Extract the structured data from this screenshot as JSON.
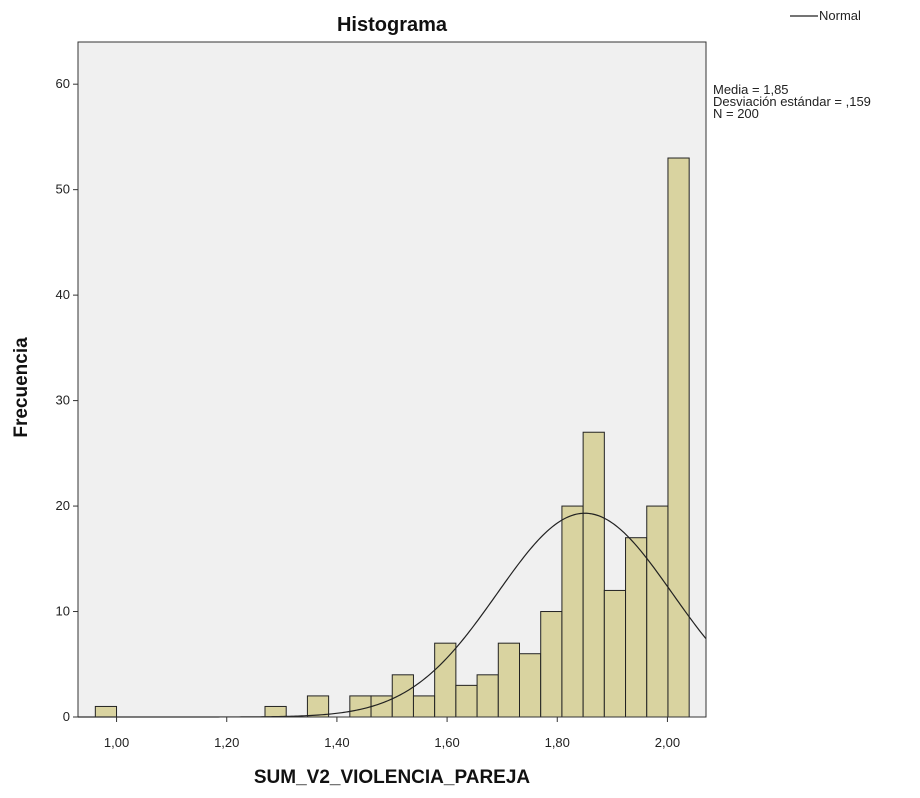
{
  "chart_data": {
    "type": "bar",
    "title": "Histograma",
    "xlabel": "SUM_V2_VIOLENCIA_PAREJA",
    "ylabel": "Frecuencia",
    "xlim": [
      0.93,
      2.07
    ],
    "ylim": [
      0,
      64
    ],
    "x_ticks": [
      1.0,
      1.2,
      1.4,
      1.6,
      1.8,
      2.0
    ],
    "x_tick_labels": [
      "1,00",
      "1,20",
      "1,40",
      "1,60",
      "1,80",
      "2,00"
    ],
    "y_ticks": [
      0,
      10,
      20,
      30,
      40,
      50,
      60
    ],
    "y_tick_labels": [
      "0",
      "10",
      "20",
      "30",
      "40",
      "50",
      "60"
    ],
    "bin_width": 0.0385,
    "bins": [
      {
        "x": 0.9807,
        "count": 1
      },
      {
        "x": 1.2887,
        "count": 1
      },
      {
        "x": 1.3657,
        "count": 2
      },
      {
        "x": 1.4427,
        "count": 2
      },
      {
        "x": 1.4812,
        "count": 2
      },
      {
        "x": 1.5197,
        "count": 4
      },
      {
        "x": 1.5582,
        "count": 2
      },
      {
        "x": 1.5967,
        "count": 7
      },
      {
        "x": 1.6352,
        "count": 3
      },
      {
        "x": 1.6737,
        "count": 4
      },
      {
        "x": 1.7122,
        "count": 7
      },
      {
        "x": 1.7507,
        "count": 6
      },
      {
        "x": 1.7892,
        "count": 10
      },
      {
        "x": 1.8277,
        "count": 20
      },
      {
        "x": 1.8662,
        "count": 27
      },
      {
        "x": 1.9047,
        "count": 12
      },
      {
        "x": 1.9432,
        "count": 17
      },
      {
        "x": 1.9817,
        "count": 20
      },
      {
        "x": 2.0202,
        "count": 53
      }
    ],
    "normal_curve": {
      "mean": 1.85,
      "sd": 0.159,
      "n": 200
    },
    "bar_color": "#d9d3a0",
    "bar_edge_color": "#222222",
    "plot_background": "#f0f0f0",
    "grid": false,
    "legend": {
      "placement": "top-right",
      "entries": [
        "Normal"
      ]
    },
    "stats_text": [
      "Media = 1,85",
      "Desviación estándar = ,159",
      "N = 200"
    ]
  }
}
